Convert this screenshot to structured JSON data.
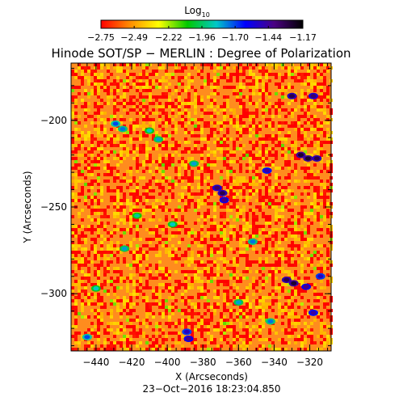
{
  "chart_data": {
    "type": "heatmap",
    "title": "Hinode SOT/SP − MERLIN : Degree of Polarization",
    "xlabel": "X (Arcseconds)",
    "ylabel": "Y (Arcseconds)",
    "timestamp": "23−Oct−2016 18:23:04.850",
    "xlim": [
      -454,
      -308
    ],
    "ylim": [
      -333,
      -167
    ],
    "xticks": [
      -440,
      -420,
      -400,
      -380,
      -360,
      -340,
      -320
    ],
    "xtick_labels": [
      "−440",
      "−420",
      "−400",
      "−380",
      "−360",
      "−340",
      "−320"
    ],
    "yticks": [
      -200,
      -250,
      -300
    ],
    "ytick_labels": [
      "−200",
      "−250",
      "−300"
    ],
    "colorbar": {
      "label": "Log",
      "label_subscript": "10",
      "ticks": [
        -2.75,
        -2.49,
        -2.22,
        -1.96,
        -1.7,
        -1.44,
        -1.17
      ],
      "tick_labels": [
        "−2.75",
        "−2.49",
        "−2.22",
        "−1.96",
        "−1.70",
        "−1.44",
        "−1.17"
      ],
      "range": [
        -2.75,
        -1.17
      ],
      "colors": [
        "#ff0000",
        "#ff8c00",
        "#ffff00",
        "#00c800",
        "#00c8c8",
        "#0000ff",
        "#4b0082",
        "#000000"
      ]
    },
    "dominant_level": -2.55,
    "cluster_level": -1.75,
    "strong_level": -1.35,
    "clusters": [
      {
        "x": -330,
        "y": -186,
        "level": -1.3
      },
      {
        "x": -318,
        "y": -186,
        "level": -1.35
      },
      {
        "x": -429,
        "y": -202,
        "level": -1.7
      },
      {
        "x": -425,
        "y": -205,
        "level": -1.75
      },
      {
        "x": -405,
        "y": -211,
        "level": -1.8
      },
      {
        "x": -410,
        "y": -206,
        "level": -1.85
      },
      {
        "x": -325,
        "y": -220,
        "level": -1.25
      },
      {
        "x": -321,
        "y": -222,
        "level": -1.25
      },
      {
        "x": -316,
        "y": -222,
        "level": -1.3
      },
      {
        "x": -385,
        "y": -225,
        "level": -1.8
      },
      {
        "x": -344,
        "y": -229,
        "level": -1.45
      },
      {
        "x": -372,
        "y": -239,
        "level": -1.35
      },
      {
        "x": -369,
        "y": -242,
        "level": -1.3
      },
      {
        "x": -368,
        "y": -246,
        "level": -1.4
      },
      {
        "x": -417,
        "y": -255,
        "level": -1.9
      },
      {
        "x": -397,
        "y": -260,
        "level": -1.85
      },
      {
        "x": -424,
        "y": -274,
        "level": -1.8
      },
      {
        "x": -352,
        "y": -270,
        "level": -1.75
      },
      {
        "x": -333,
        "y": -292,
        "level": -1.3
      },
      {
        "x": -329,
        "y": -294,
        "level": -1.25
      },
      {
        "x": -322,
        "y": -296,
        "level": -1.4
      },
      {
        "x": -318,
        "y": -311,
        "level": -1.45
      },
      {
        "x": -314,
        "y": -290,
        "level": -1.5
      },
      {
        "x": -389,
        "y": -322,
        "level": -1.5
      },
      {
        "x": -388,
        "y": -326,
        "level": -1.4
      },
      {
        "x": -445,
        "y": -325,
        "level": -1.7
      },
      {
        "x": -440,
        "y": -297,
        "level": -1.85
      },
      {
        "x": -360,
        "y": -305,
        "level": -1.8
      },
      {
        "x": -342,
        "y": -316,
        "level": -1.75
      }
    ]
  }
}
